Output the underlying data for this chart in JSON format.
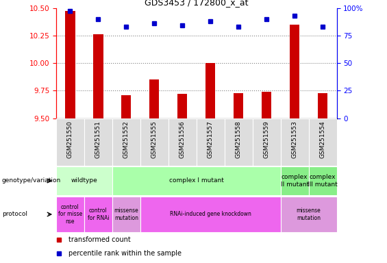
{
  "title": "GDS3453 / 172800_x_at",
  "samples": [
    "GSM251550",
    "GSM251551",
    "GSM251552",
    "GSM251555",
    "GSM251556",
    "GSM251557",
    "GSM251558",
    "GSM251559",
    "GSM251553",
    "GSM251554"
  ],
  "bar_values": [
    10.47,
    10.26,
    9.71,
    9.85,
    9.72,
    10.0,
    9.73,
    9.74,
    10.35,
    9.73
  ],
  "dot_values": [
    97,
    90,
    83,
    86,
    84,
    88,
    83,
    90,
    93,
    83
  ],
  "ylim_left": [
    9.5,
    10.5
  ],
  "ylim_right": [
    0,
    100
  ],
  "yticks_left": [
    9.5,
    9.75,
    10.0,
    10.25,
    10.5
  ],
  "yticks_right": [
    0,
    25,
    50,
    75,
    100
  ],
  "bar_color": "#cc0000",
  "dot_color": "#0000cc",
  "bar_bottom": 9.5,
  "genotype_row": [
    {
      "label": "wildtype",
      "start": 0,
      "end": 2,
      "color": "#ccffcc"
    },
    {
      "label": "complex I mutant",
      "start": 2,
      "end": 8,
      "color": "#aaffaa"
    },
    {
      "label": "complex\nII mutant",
      "start": 8,
      "end": 9,
      "color": "#88ee88"
    },
    {
      "label": "complex\nIII mutant",
      "start": 9,
      "end": 10,
      "color": "#88ee88"
    }
  ],
  "protocol_row": [
    {
      "label": "control\nfor misse\nnse",
      "start": 0,
      "end": 1,
      "color": "#ee66ee"
    },
    {
      "label": "control\nfor RNAi",
      "start": 1,
      "end": 2,
      "color": "#ee66ee"
    },
    {
      "label": "missense\nmutation",
      "start": 2,
      "end": 3,
      "color": "#dd99dd"
    },
    {
      "label": "RNAi-induced gene knockdown",
      "start": 3,
      "end": 8,
      "color": "#ee66ee"
    },
    {
      "label": "missense\nmutation",
      "start": 8,
      "end": 10,
      "color": "#dd99dd"
    }
  ],
  "legend_items": [
    {
      "color": "#cc0000",
      "label": "transformed count"
    },
    {
      "color": "#0000cc",
      "label": "percentile rank within the sample"
    }
  ],
  "label_genotype": "genotype/variation",
  "label_protocol": "protocol"
}
